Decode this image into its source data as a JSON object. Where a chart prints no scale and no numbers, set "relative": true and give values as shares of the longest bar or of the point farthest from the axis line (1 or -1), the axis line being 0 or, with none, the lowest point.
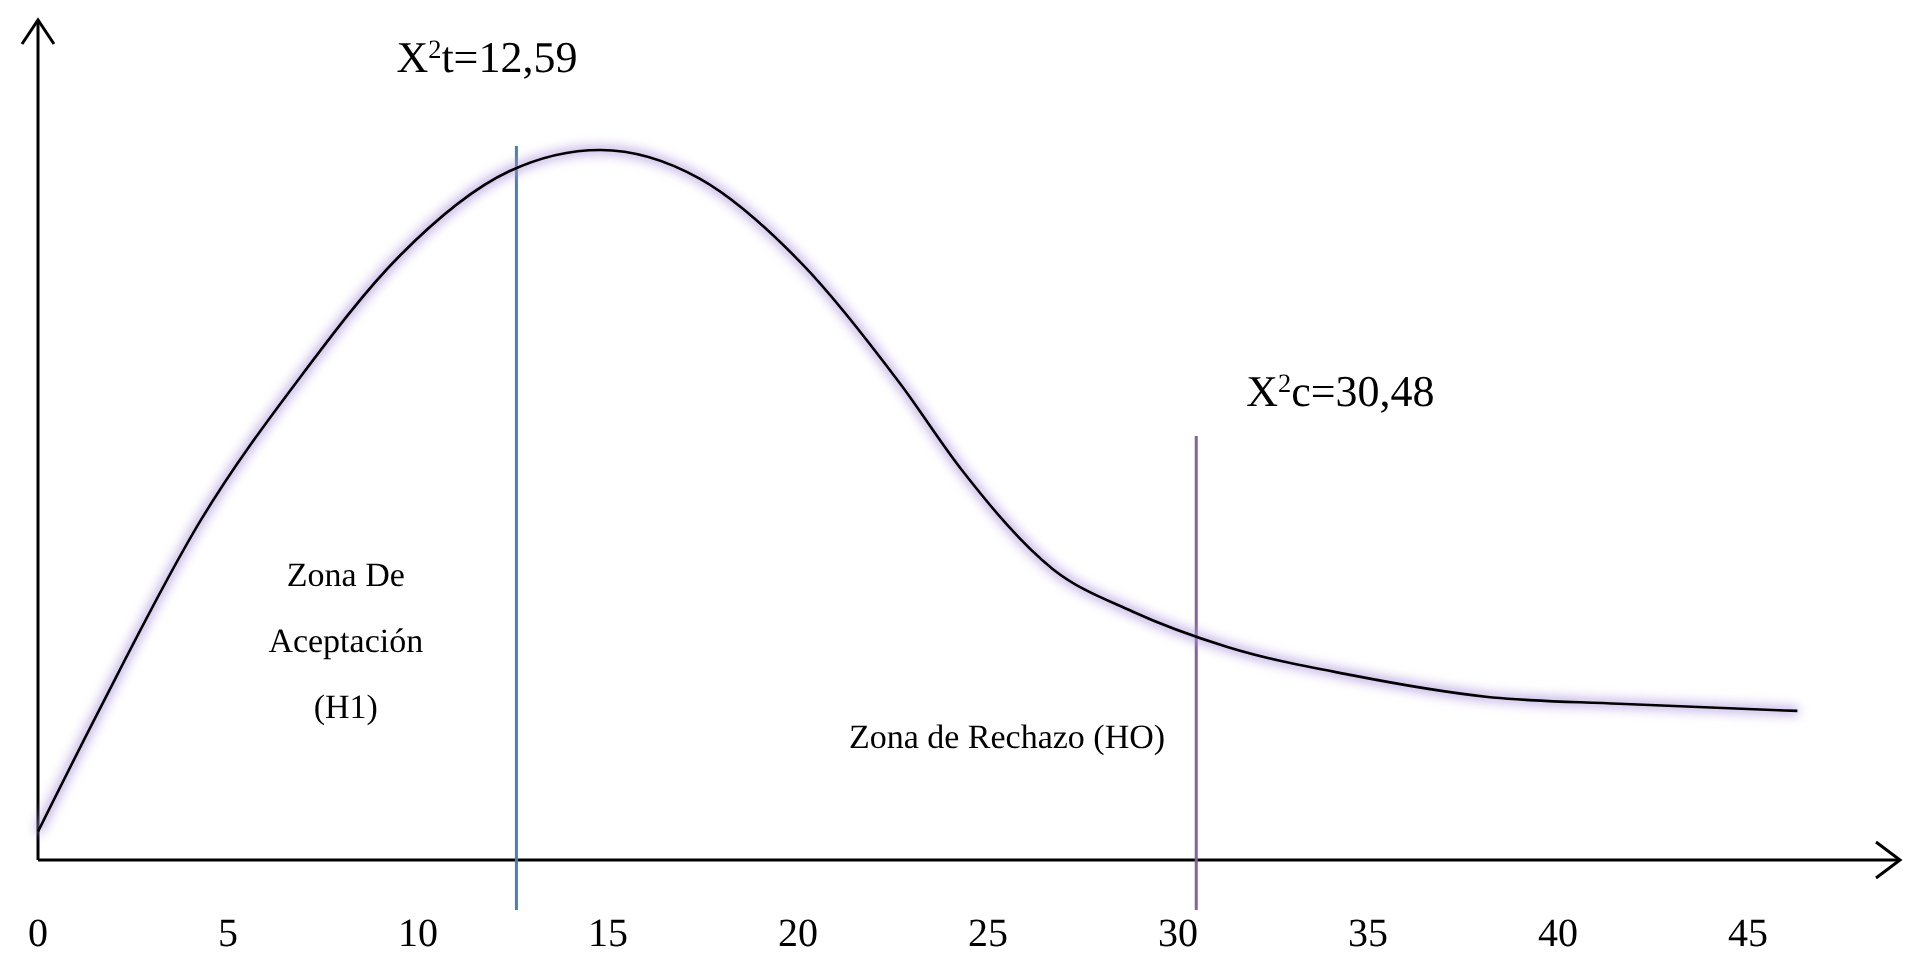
{
  "chart_data": {
    "type": "line",
    "relative": true,
    "x": [
      0,
      1.6,
      4.3,
      6.9,
      9.5,
      12.4,
      14.8,
      17.4,
      20.1,
      22.7,
      24.3,
      26.7,
      28.8,
      31.3,
      34.6,
      38.1,
      41.6,
      46.3
    ],
    "series": [
      {
        "color": "#000000",
        "values": [
          0.04,
          0.21,
          0.48,
          0.68,
          0.85,
          0.97,
          1,
          0.96,
          0.84,
          0.67,
          0.55,
          0.41,
          0.35,
          0.3,
          0.26,
          0.23,
          0.22,
          0.21
        ]
      }
    ],
    "xlim": [
      0,
      49
    ],
    "xticks": [
      0,
      5,
      10,
      15,
      20,
      25,
      30,
      35,
      40,
      45
    ],
    "grid": false,
    "marker": "none",
    "line_style": "solid",
    "ref_lines": [
      {
        "axis": "x",
        "value": 12.59,
        "label": "X$^{2}$t=12,59",
        "color": "#4a7ebb"
      },
      {
        "axis": "x",
        "value": 30.48,
        "label": "X$^{2}$c=30,48",
        "color": "#8064a2"
      }
    ],
    "annotations": [
      "Zona De Aceptación (H1)",
      "Zona de Rechazo (HO)"
    ]
  }
}
